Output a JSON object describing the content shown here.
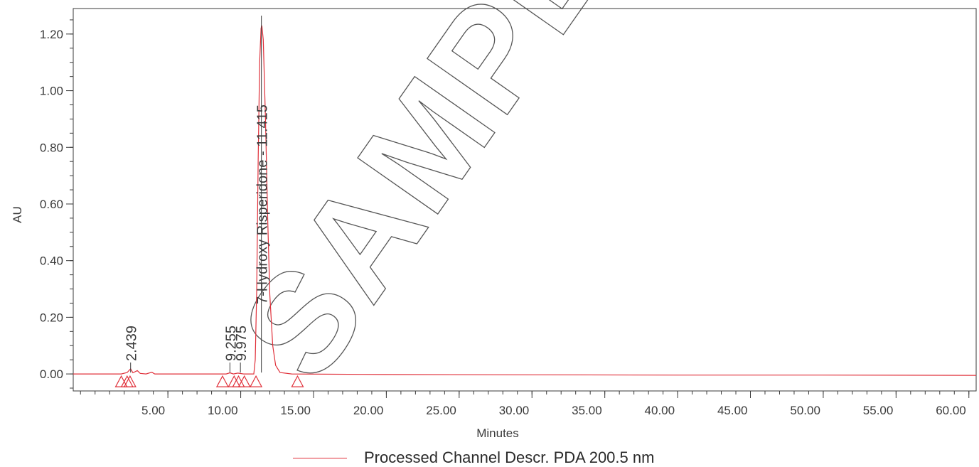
{
  "chart_data": {
    "type": "line",
    "xlabel": "Minutes",
    "ylabel": "AU",
    "xlim": [
      -1.5,
      60.5
    ],
    "ylim": [
      -0.06,
      1.29
    ],
    "x_ticks": [
      "5.00",
      "10.00",
      "15.00",
      "20.00",
      "25.00",
      "30.00",
      "35.00",
      "40.00",
      "45.00",
      "50.00",
      "55.00",
      "60.00"
    ],
    "y_ticks": [
      "0.00",
      "0.20",
      "0.40",
      "0.60",
      "0.80",
      "1.00",
      "1.20"
    ],
    "series": [
      {
        "name": "Processed Channel Descr. PDA 200.5 nm",
        "color": "#e0303a",
        "points": [
          [
            -1.5,
            0.0
          ],
          [
            1.8,
            0.0
          ],
          [
            2.2,
            0.005
          ],
          [
            2.44,
            0.018
          ],
          [
            2.6,
            0.004
          ],
          [
            2.9,
            0.012
          ],
          [
            3.1,
            0.002
          ],
          [
            3.5,
            0.0
          ],
          [
            3.9,
            0.006
          ],
          [
            4.1,
            0.0
          ],
          [
            9.0,
            0.0
          ],
          [
            9.26,
            0.004
          ],
          [
            9.5,
            0.0
          ],
          [
            9.8,
            0.003
          ],
          [
            10.2,
            0.0
          ],
          [
            10.9,
            0.0
          ],
          [
            11.0,
            0.05
          ],
          [
            11.1,
            0.3
          ],
          [
            11.2,
            0.75
          ],
          [
            11.3,
            1.1
          ],
          [
            11.4,
            1.22
          ],
          [
            11.45,
            1.23
          ],
          [
            11.55,
            1.18
          ],
          [
            11.7,
            0.9
          ],
          [
            11.85,
            0.55
          ],
          [
            12.0,
            0.28
          ],
          [
            12.2,
            0.1
          ],
          [
            12.4,
            0.03
          ],
          [
            12.7,
            0.005
          ],
          [
            13.5,
            0.0
          ],
          [
            20.0,
            -0.002
          ],
          [
            30.0,
            -0.003
          ],
          [
            40.0,
            -0.004
          ],
          [
            50.0,
            -0.004
          ],
          [
            60.5,
            -0.005
          ]
        ]
      }
    ],
    "peaks": [
      {
        "label": "2.439",
        "rt": 2.44
      },
      {
        "label": "9.255",
        "rt": 9.26
      },
      {
        "label": "9.975",
        "rt": 9.98
      },
      {
        "label": "7-Hydroxy Risperidone - 11.415",
        "rt": 11.42
      }
    ],
    "baseline_markers": [
      1.8,
      2.2,
      2.4,
      8.75,
      9.55,
      9.85,
      10.25,
      11.05,
      13.9
    ],
    "watermark": "SAMPLE",
    "legend": {
      "position": "bottom-center",
      "label": "Processed Channel Descr. PDA 200.5 nm"
    }
  }
}
